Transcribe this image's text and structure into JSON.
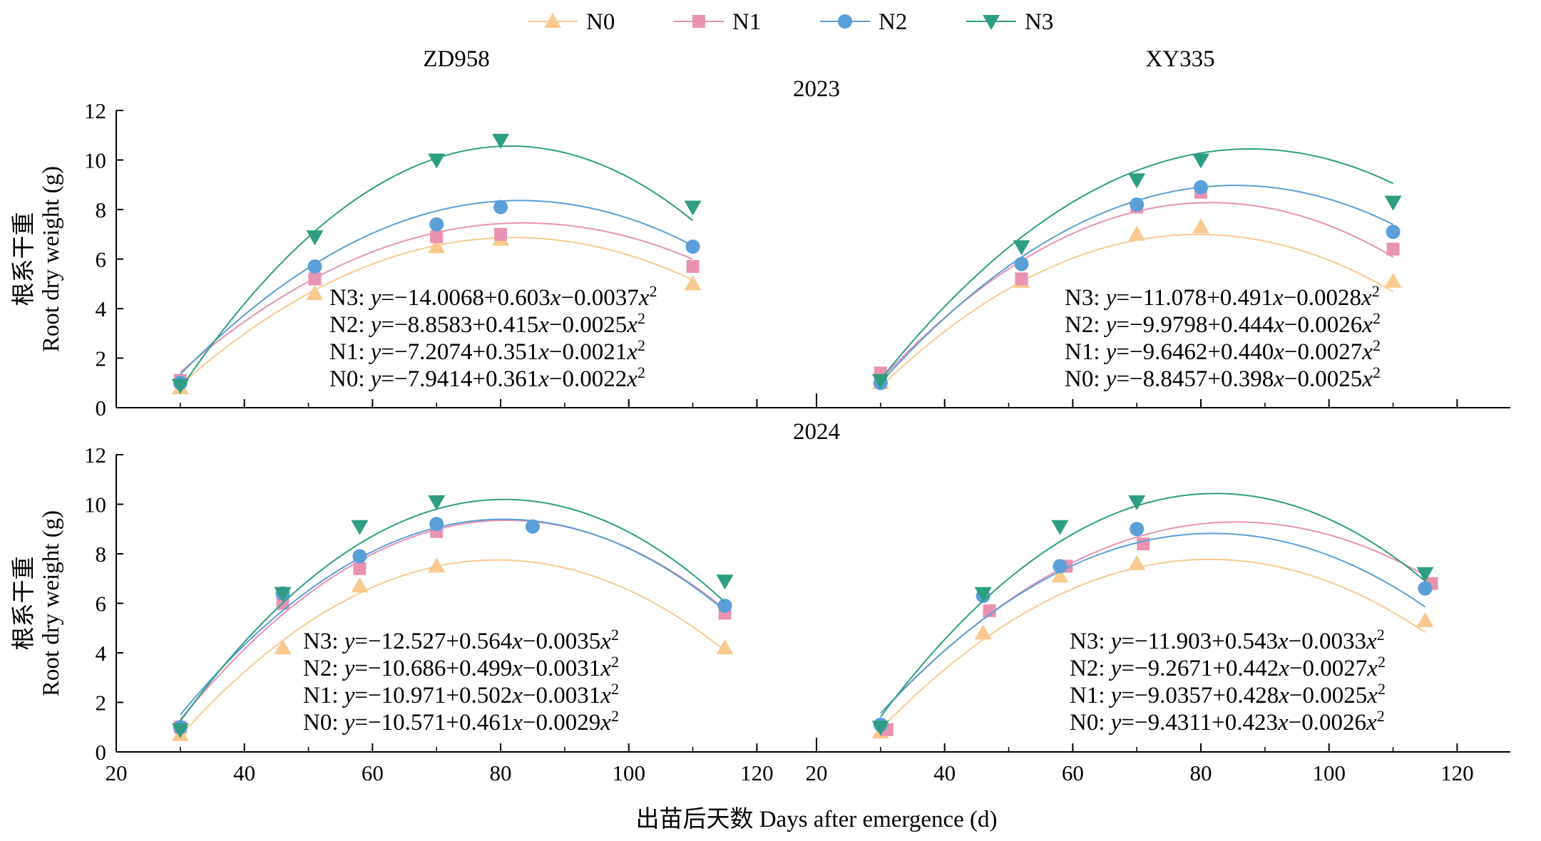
{
  "chart_data": {
    "type": "scatter",
    "legend": [
      {
        "name": "N0",
        "color": "#f9c98f",
        "marker": "triangle-up"
      },
      {
        "name": "N1",
        "color": "#e992b2",
        "marker": "square"
      },
      {
        "name": "N2",
        "color": "#5a9fd8",
        "marker": "circle"
      },
      {
        "name": "N3",
        "color": "#2e9e82",
        "marker": "triangle-down"
      }
    ],
    "legend_position": "top-center",
    "columns": [
      "ZD958",
      "XY335"
    ],
    "rows": [
      "2023",
      "2024"
    ],
    "xlabel": "出苗后天数 Days after emergence (d)",
    "ylabel_cn": "根系干重",
    "ylabel_en": "Root dry weight (g)",
    "xlim": [
      20,
      130
    ],
    "x_ticks": [
      20,
      40,
      60,
      80,
      100,
      120
    ],
    "ylim": [
      0,
      12
    ],
    "y_ticks": [
      0,
      2,
      4,
      6,
      8,
      10,
      12
    ],
    "grid": false,
    "panels": [
      {
        "row": "2023",
        "cultivar": "ZD958",
        "equations": [
          {
            "label": "N3:",
            "rhs": "−14.0068+0.603",
            "mid": "−0.0037"
          },
          {
            "label": "N2:",
            "rhs": "−8.8583+0.415",
            "mid": "−0.0025"
          },
          {
            "label": "N1:",
            "rhs": "−7.2074+0.351",
            "mid": "−0.0021"
          },
          {
            "label": "N0:",
            "rhs": "−7.9414+0.361",
            "mid": "−0.0022"
          }
        ],
        "series": [
          {
            "name": "N0",
            "coef": [
              -7.9414,
              0.361,
              -0.0022
            ],
            "x": [
              30,
              51,
              70,
              80,
              110
            ],
            "y": [
              0.8,
              4.6,
              6.5,
              6.8,
              5.0
            ]
          },
          {
            "name": "N1",
            "coef": [
              -7.2074,
              0.351,
              -0.0021
            ],
            "x": [
              30,
              51,
              70,
              80,
              110
            ],
            "y": [
              1.1,
              5.2,
              6.9,
              7.0,
              5.7
            ]
          },
          {
            "name": "N2",
            "coef": [
              -8.8583,
              0.415,
              -0.0025
            ],
            "x": [
              30,
              51,
              70,
              80,
              110
            ],
            "y": [
              1.0,
              5.7,
              7.4,
              8.1,
              6.5
            ]
          },
          {
            "name": "N3",
            "coef": [
              -14.0068,
              0.603,
              -0.0037
            ],
            "x": [
              30,
              51,
              70,
              80,
              110
            ],
            "y": [
              0.9,
              6.9,
              10.0,
              10.8,
              8.1
            ]
          }
        ]
      },
      {
        "row": "2023",
        "cultivar": "XY335",
        "equations": [
          {
            "label": "N3:",
            "rhs": "−11.078+0.491",
            "mid": "−0.0028"
          },
          {
            "label": "N2:",
            "rhs": "−9.9798+0.444",
            "mid": "−0.0026"
          },
          {
            "label": "N1:",
            "rhs": "−9.6462+0.440",
            "mid": "−0.0027"
          },
          {
            "label": "N0:",
            "rhs": "−8.8457+0.398",
            "mid": "−0.0025"
          }
        ],
        "series": [
          {
            "name": "N0",
            "coef": [
              -8.8457,
              0.398,
              -0.0025
            ],
            "x": [
              30,
              52,
              70,
              80,
              110
            ],
            "y": [
              1.0,
              5.1,
              7.0,
              7.3,
              5.1
            ]
          },
          {
            "name": "N1",
            "coef": [
              -9.6462,
              0.44,
              -0.0027
            ],
            "x": [
              30,
              52,
              70,
              80,
              110
            ],
            "y": [
              1.4,
              5.2,
              8.1,
              8.7,
              6.4
            ]
          },
          {
            "name": "N2",
            "coef": [
              -9.9798,
              0.444,
              -0.0026
            ],
            "x": [
              30,
              52,
              70,
              80,
              110
            ],
            "y": [
              1.0,
              5.8,
              8.2,
              8.9,
              7.1
            ]
          },
          {
            "name": "N3",
            "coef": [
              -11.078,
              0.491,
              -0.0028
            ],
            "x": [
              30,
              52,
              70,
              80,
              110
            ],
            "y": [
              1.1,
              6.5,
              9.2,
              10.0,
              8.3
            ]
          }
        ]
      },
      {
        "row": "2024",
        "cultivar": "ZD958",
        "equations": [
          {
            "label": "N3:",
            "rhs": "−12.527+0.564",
            "mid": "−0.0035"
          },
          {
            "label": "N2:",
            "rhs": "−10.686+0.499",
            "mid": "−0.0031"
          },
          {
            "label": "N1:",
            "rhs": "−10.971+0.502",
            "mid": "−0.0031"
          },
          {
            "label": "N0:",
            "rhs": "−10.571+0.461",
            "mid": "−0.0029"
          }
        ],
        "series": [
          {
            "name": "N0",
            "coef": [
              -10.571,
              0.461,
              -0.0029
            ],
            "x": [
              30,
              46,
              58,
              70,
              115
            ],
            "y": [
              0.7,
              4.2,
              6.7,
              7.5,
              4.2
            ]
          },
          {
            "name": "N1",
            "coef": [
              -10.971,
              0.502,
              -0.0031
            ],
            "x": [
              30,
              46,
              58,
              70,
              115
            ],
            "y": [
              1.0,
              6.0,
              7.4,
              8.9,
              5.6
            ]
          },
          {
            "name": "N2",
            "coef": [
              -10.686,
              0.499,
              -0.0031
            ],
            "x": [
              30,
              46,
              58,
              70,
              85,
              115
            ],
            "y": [
              1.0,
              6.4,
              7.9,
              9.2,
              9.1,
              5.9
            ]
          },
          {
            "name": "N3",
            "coef": [
              -12.527,
              0.564,
              -0.0035
            ],
            "x": [
              30,
              46,
              58,
              70,
              115
            ],
            "y": [
              0.9,
              6.4,
              9.1,
              10.1,
              6.9
            ]
          }
        ]
      },
      {
        "row": "2024",
        "cultivar": "XY335",
        "equations": [
          {
            "label": "N3:",
            "rhs": "−11.903+0.543",
            "mid": "−0.0033"
          },
          {
            "label": "N2:",
            "rhs": "−9.2671+0.442",
            "mid": "−0.0027"
          },
          {
            "label": "N1:",
            "rhs": "−9.0357+0.428",
            "mid": "−0.0025"
          },
          {
            "label": "N0:",
            "rhs": "−9.4311+0.423",
            "mid": "−0.0026"
          }
        ],
        "series": [
          {
            "name": "N0",
            "coef": [
              -9.4311,
              0.423,
              -0.0026
            ],
            "x": [
              30,
              46,
              58,
              70,
              115
            ],
            "y": [
              0.8,
              4.8,
              7.1,
              7.6,
              5.3
            ]
          },
          {
            "name": "N1",
            "coef": [
              -9.0357,
              0.428,
              -0.0025
            ],
            "x": [
              31,
              47,
              59,
              71,
              116
            ],
            "y": [
              0.9,
              5.7,
              7.5,
              8.4,
              6.8
            ]
          },
          {
            "name": "N2",
            "coef": [
              -9.2671,
              0.442,
              -0.0027
            ],
            "x": [
              30,
              46,
              58,
              70,
              115
            ],
            "y": [
              1.1,
              6.3,
              7.5,
              9.0,
              6.6
            ]
          },
          {
            "name": "N3",
            "coef": [
              -11.903,
              0.543,
              -0.0033
            ],
            "x": [
              30,
              46,
              58,
              70,
              115
            ],
            "y": [
              1.0,
              6.4,
              9.1,
              10.1,
              7.2
            ]
          }
        ]
      }
    ]
  }
}
